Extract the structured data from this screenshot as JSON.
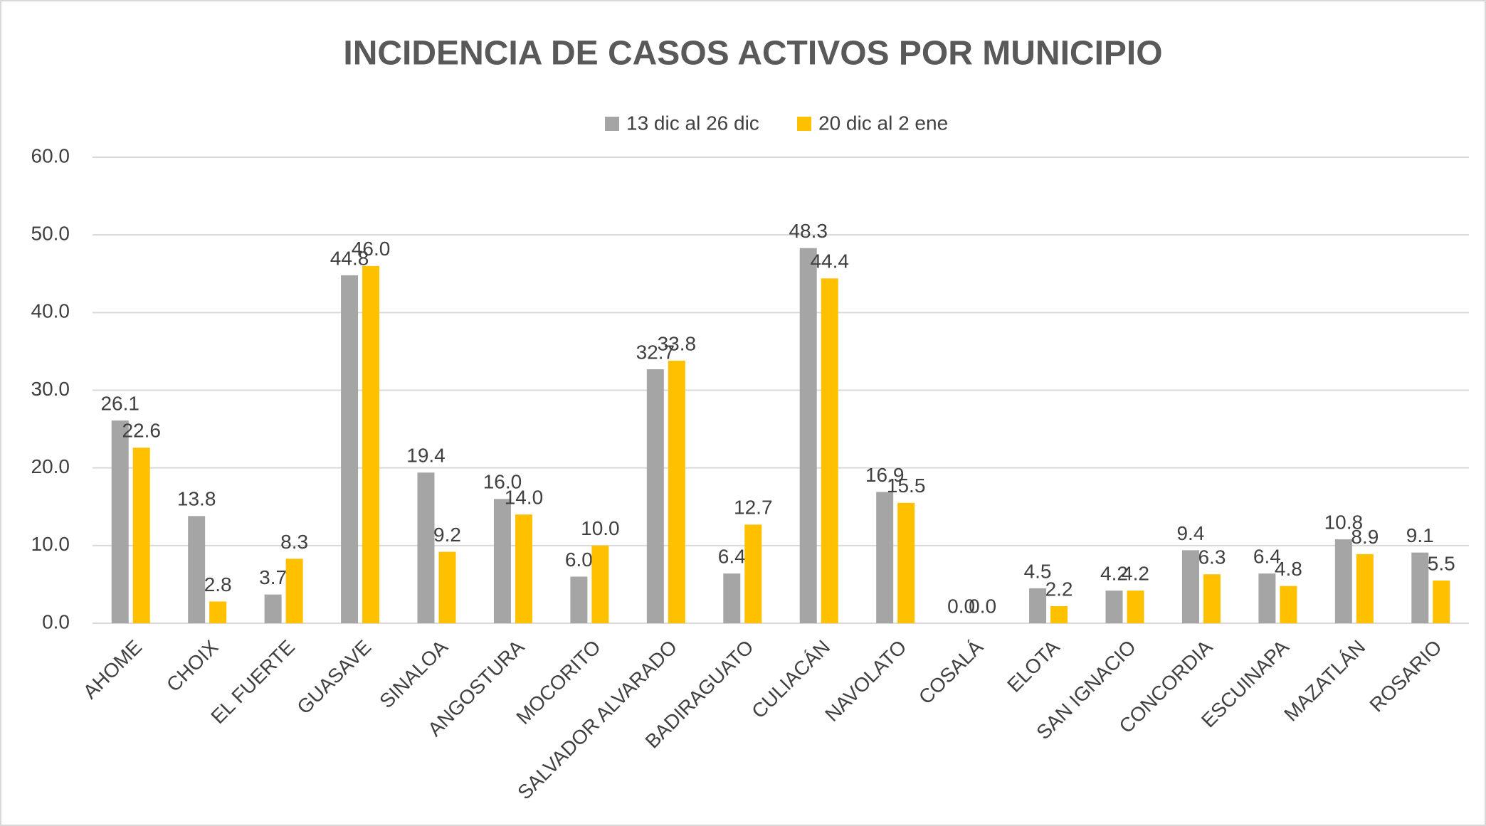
{
  "chart_data": {
    "type": "bar",
    "title": "INCIDENCIA DE CASOS ACTIVOS POR MUNICIPIO",
    "categories": [
      "AHOME",
      "CHOIX",
      "EL FUERTE",
      "GUASAVE",
      "SINALOA",
      "ANGOSTURA",
      "MOCORITO",
      "SALVADOR ALVARADO",
      "BADIRAGUATO",
      "CULIACÁN",
      "NAVOLATO",
      "COSALÁ",
      "ELOTA",
      "SAN IGNACIO",
      "CONCORDIA",
      "ESCUINAPA",
      "MAZATLÁN",
      "ROSARIO"
    ],
    "series": [
      {
        "name": "13 dic al 26 dic",
        "color": "#a5a5a5",
        "values": [
          26.1,
          13.8,
          3.7,
          44.8,
          19.4,
          16.0,
          6.0,
          32.7,
          6.4,
          48.3,
          16.9,
          0.0,
          4.5,
          4.2,
          9.4,
          6.4,
          10.8,
          9.1
        ],
        "value_labels": [
          "26.1",
          "13.8",
          "3.7",
          "44.8",
          "19.4",
          "16.0",
          "6.0",
          "32.7",
          "6.4",
          "48.3",
          "16.9",
          "0.0",
          "4.5",
          "4.2",
          "9.4",
          "6.4",
          "10.8",
          "9.1"
        ]
      },
      {
        "name": "20 dic al 2 ene",
        "color": "#ffc000",
        "values": [
          22.6,
          2.8,
          8.3,
          46.0,
          9.2,
          14.0,
          10.0,
          33.8,
          12.7,
          44.4,
          15.5,
          0.0,
          2.2,
          4.2,
          6.3,
          4.8,
          8.9,
          5.5
        ],
        "value_labels": [
          "22.6",
          "2.8",
          "8.3",
          "46.0",
          "9.2",
          "14.0",
          "10.0",
          "33.8",
          "12.7",
          "44.4",
          "15.5",
          "0.0",
          "2.2",
          "4.2",
          "6.3",
          "4.8",
          "8.9",
          "5.5"
        ]
      }
    ],
    "ylim": [
      0,
      60
    ],
    "yticks": [
      {
        "value": 0,
        "label": "0.0"
      },
      {
        "value": 10,
        "label": "10.0"
      },
      {
        "value": 20,
        "label": "20.0"
      },
      {
        "value": 30,
        "label": "30.0"
      },
      {
        "value": 40,
        "label": "40.0"
      },
      {
        "value": 50,
        "label": "50.0"
      },
      {
        "value": 60,
        "label": "60.0"
      }
    ],
    "grid": true,
    "legend": "top"
  }
}
